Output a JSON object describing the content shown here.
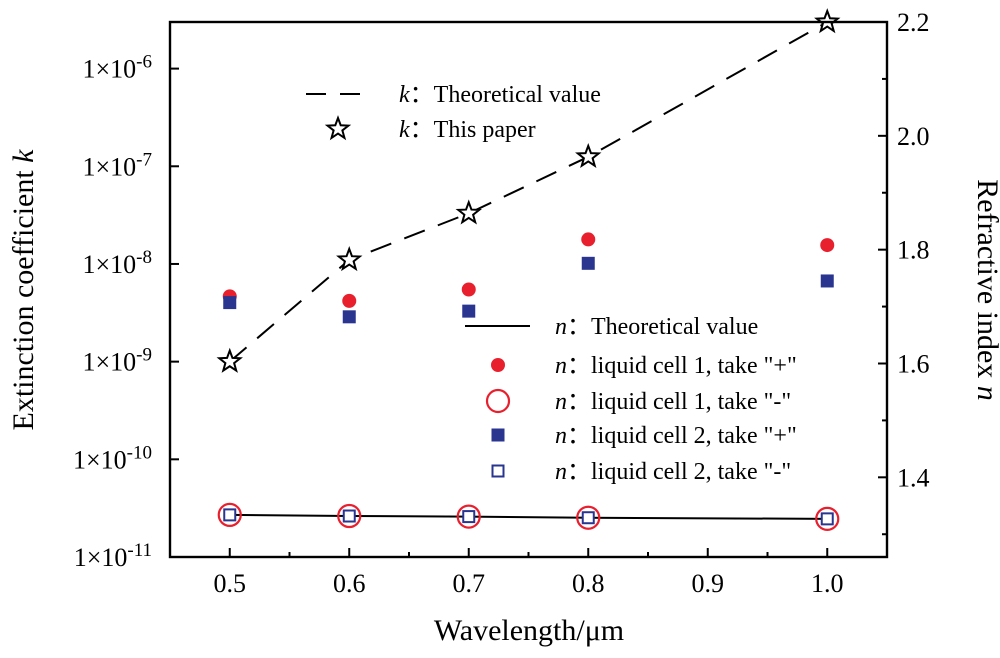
{
  "chart_data": {
    "type": "scatter",
    "xlabel": "Wavelength/μm",
    "ylabel_left_prefix": "Extinction coefficient ",
    "ylabel_left_var": "k",
    "ylabel_right_prefix": "Refractive index ",
    "ylabel_right_var": "n",
    "xlim": [
      0.45,
      1.05
    ],
    "x_ticks": [
      0.5,
      0.6,
      0.7,
      0.8,
      0.9,
      1.0
    ],
    "x_tick_labels": [
      "0.5",
      "0.6",
      "0.7",
      "0.8",
      "0.9",
      "1.0"
    ],
    "y_left_scale": "log",
    "y_left_lim": [
      1e-11,
      3e-06
    ],
    "y_left_ticks": [
      {
        "value": 1e-11,
        "base": "1×10",
        "exp": "-11"
      },
      {
        "value": 1e-10,
        "base": "1×10",
        "exp": "-10"
      },
      {
        "value": 1e-09,
        "base": "1×10",
        "exp": "-9"
      },
      {
        "value": 1e-08,
        "base": "1×10",
        "exp": "-8"
      },
      {
        "value": 1e-07,
        "base": "1×10",
        "exp": "-7"
      },
      {
        "value": 1e-06,
        "base": "1×10",
        "exp": "-6"
      }
    ],
    "y_right_lim": [
      1.26,
      2.2
    ],
    "y_right_ticks": [
      1.4,
      1.6,
      1.8,
      2.0,
      2.2
    ],
    "y_right_tick_labels": [
      "1.4",
      "1.6",
      "1.8",
      "2.0",
      "2.2"
    ],
    "series": [
      {
        "var": "k",
        "text": "：Theoretical value",
        "axis": "left",
        "style": "dashed-line",
        "color": "#000000",
        "x": [
          0.5,
          0.6,
          0.7,
          0.8,
          1.0
        ],
        "y": [
          1e-09,
          1.1e-08,
          3.3e-08,
          1.25e-07,
          3e-06
        ]
      },
      {
        "var": "k",
        "text": "：This paper",
        "axis": "left",
        "style": "open-star",
        "color": "#000000",
        "x": [
          0.5,
          0.6,
          0.7,
          0.8,
          1.0
        ],
        "y": [
          1e-09,
          1.1e-08,
          3.3e-08,
          1.25e-07,
          3e-06
        ]
      },
      {
        "var": "n",
        "text": "：Theoretical value",
        "axis": "right",
        "style": "solid-line",
        "color": "#000000",
        "x": [
          0.5,
          0.6,
          0.7,
          0.8,
          1.0
        ],
        "y": [
          1.334,
          1.332,
          1.331,
          1.329,
          1.327
        ]
      },
      {
        "var": "n",
        "text": "：liquid cell 1, take \"+\"",
        "axis": "right",
        "style": "filled-circle",
        "color": "#e8202e",
        "x": [
          0.5,
          0.6,
          0.7,
          0.8,
          1.0
        ],
        "y": [
          1.718,
          1.71,
          1.73,
          1.818,
          1.808
        ]
      },
      {
        "var": "n",
        "text": "：liquid cell 1, take \"-\"",
        "axis": "right",
        "style": "open-circle",
        "color": "#e8202e",
        "x": [
          0.5,
          0.6,
          0.7,
          0.8,
          1.0
        ],
        "y": [
          1.334,
          1.332,
          1.331,
          1.329,
          1.327
        ]
      },
      {
        "var": "n",
        "text": "：liquid cell 2, take \"+\"",
        "axis": "right",
        "style": "filled-square",
        "color": "#2a3590",
        "x": [
          0.5,
          0.6,
          0.7,
          0.8,
          1.0
        ],
        "y": [
          1.707,
          1.682,
          1.692,
          1.776,
          1.745
        ]
      },
      {
        "var": "n",
        "text": "：liquid cell 2, take \"-\"",
        "axis": "right",
        "style": "open-square",
        "color": "#2a3590",
        "x": [
          0.5,
          0.6,
          0.7,
          0.8,
          1.0
        ],
        "y": [
          1.334,
          1.332,
          1.331,
          1.329,
          1.327
        ]
      }
    ],
    "grid": false,
    "legend_k_position": "top-left",
    "legend_n_position": "lower-right"
  }
}
